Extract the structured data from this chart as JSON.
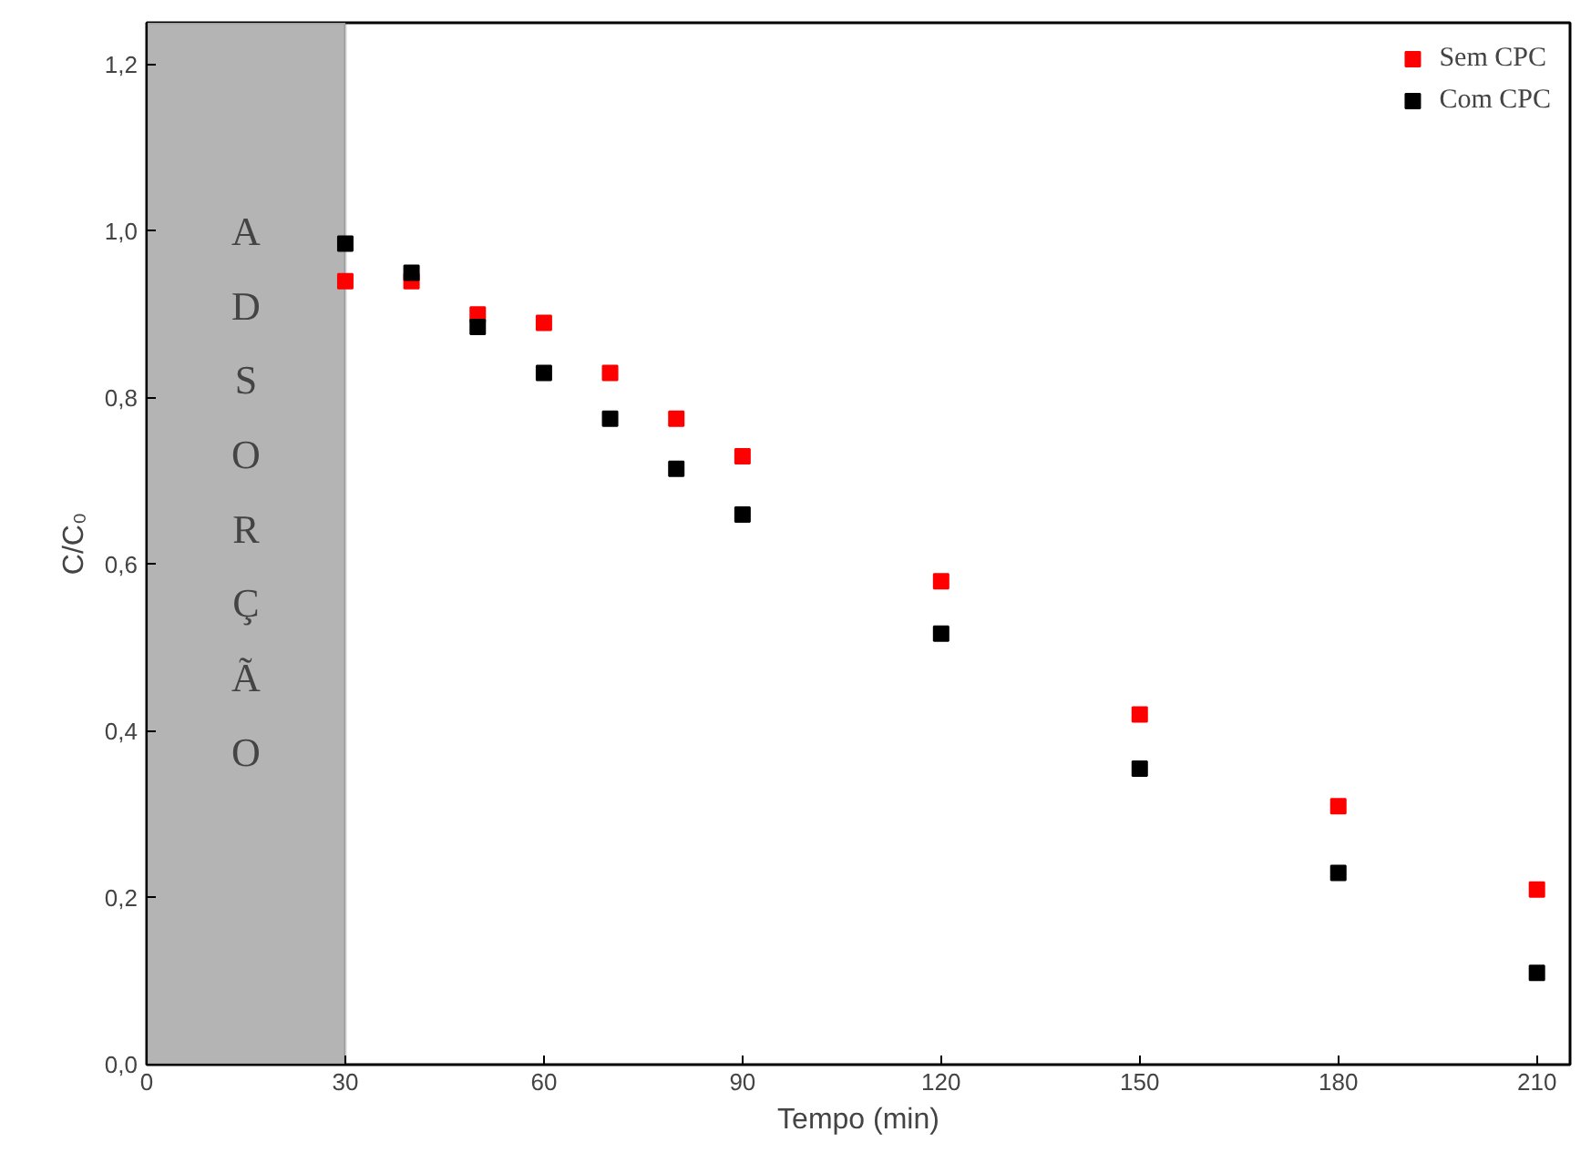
{
  "chart_data": {
    "type": "scatter",
    "xlabel": "Tempo (min)",
    "ylabel": "C/C₀",
    "x": [
      30,
      40,
      50,
      60,
      70,
      80,
      90,
      120,
      150,
      180,
      210
    ],
    "series": [
      {
        "name": "Sem CPC",
        "color": "#ff0000",
        "values": [
          0.94,
          0.94,
          0.9,
          0.89,
          0.83,
          0.775,
          0.73,
          0.58,
          0.42,
          0.31,
          0.21
        ]
      },
      {
        "name": "Com CPC",
        "color": "#000000",
        "values": [
          0.985,
          0.95,
          0.885,
          0.83,
          0.775,
          0.715,
          0.66,
          0.517,
          0.355,
          0.23,
          0.11
        ]
      }
    ],
    "xlim": [
      0,
      215
    ],
    "ylim": [
      0,
      1.25
    ],
    "xticks": [
      0,
      30,
      60,
      90,
      120,
      150,
      180,
      210
    ],
    "yticks": [
      {
        "value": 0,
        "label": "0,0"
      },
      {
        "value": 0.2,
        "label": "0,2"
      },
      {
        "value": 0.4,
        "label": "0,4"
      },
      {
        "value": 0.6,
        "label": "0,6"
      },
      {
        "value": 0.8,
        "label": "0,8"
      },
      {
        "value": 1.0,
        "label": "1,0"
      },
      {
        "value": 1.2,
        "label": "1,2"
      }
    ],
    "bands": [
      {
        "axis": "x",
        "from": 0,
        "to": 30,
        "label": "ADSORÇÃO",
        "color": "#b4b4b4"
      }
    ],
    "marker": "square",
    "grid": false,
    "legend": "top right"
  }
}
